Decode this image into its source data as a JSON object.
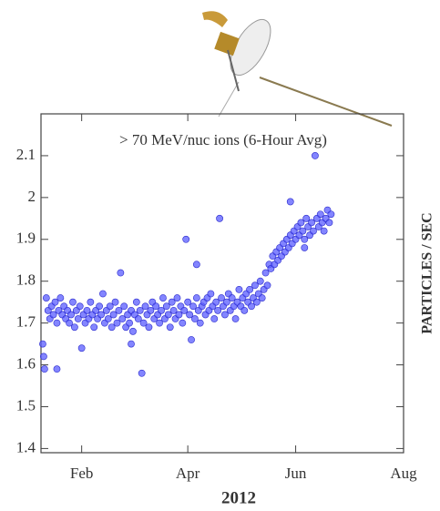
{
  "chart_data": {
    "type": "scatter",
    "annotation": "> 70 MeV/nuc ions (6-Hour Avg)",
    "x_label": "2012",
    "y_label": "PARTICLES / SEC",
    "color": "#5a5cff",
    "xlim": [
      9,
      214
    ],
    "ylim": [
      1.39,
      2.2
    ],
    "xticks": [
      {
        "value": 32,
        "label": "Feb"
      },
      {
        "value": 92,
        "label": "Apr"
      },
      {
        "value": 153,
        "label": "Jun"
      },
      {
        "value": 214,
        "label": "Aug"
      }
    ],
    "yticks": [
      1.4,
      1.5,
      1.6,
      1.7,
      1.8,
      1.9,
      2,
      2.1
    ],
    "x": [
      12,
      13,
      14,
      15,
      16,
      17,
      18,
      19,
      20,
      21,
      22,
      23,
      24,
      25,
      26,
      27,
      28,
      29,
      30,
      31,
      33,
      34,
      35,
      36,
      37,
      38,
      39,
      40,
      41,
      42,
      43,
      44,
      45,
      46,
      47,
      48,
      49,
      50,
      51,
      52,
      53,
      55,
      56,
      57,
      58,
      59,
      60,
      61,
      62,
      63,
      64,
      65,
      67,
      68,
      69,
      70,
      71,
      72,
      73,
      74,
      75,
      76,
      77,
      78,
      79,
      80,
      81,
      82,
      83,
      84,
      85,
      86,
      87,
      88,
      89,
      90,
      92,
      93,
      95,
      96,
      97,
      98,
      99,
      100,
      101,
      102,
      103,
      104,
      105,
      106,
      107,
      108,
      109,
      111,
      112,
      113,
      114,
      115,
      116,
      117,
      118,
      119,
      120,
      121,
      122,
      123,
      124,
      125,
      126,
      127,
      128,
      129,
      130,
      131,
      132,
      133,
      134,
      135,
      136,
      137,
      138,
      139,
      140,
      141,
      142,
      143,
      144,
      145,
      146,
      147,
      148,
      149,
      150,
      151,
      152,
      153,
      154,
      155,
      156,
      157,
      158,
      159,
      160,
      161,
      162,
      163,
      165,
      166,
      167,
      168,
      169,
      170,
      171,
      172,
      173,
      10,
      10.5,
      11,
      18,
      32,
      54,
      60,
      66,
      91,
      94,
      97,
      110,
      150,
      158,
      164
    ],
    "values": [
      1.76,
      1.73,
      1.71,
      1.74,
      1.72,
      1.75,
      1.7,
      1.73,
      1.76,
      1.72,
      1.74,
      1.71,
      1.73,
      1.7,
      1.72,
      1.75,
      1.69,
      1.73,
      1.71,
      1.74,
      1.72,
      1.7,
      1.73,
      1.71,
      1.75,
      1.72,
      1.69,
      1.73,
      1.71,
      1.74,
      1.72,
      1.77,
      1.7,
      1.73,
      1.71,
      1.74,
      1.69,
      1.72,
      1.75,
      1.7,
      1.73,
      1.71,
      1.74,
      1.69,
      1.72,
      1.7,
      1.73,
      1.68,
      1.72,
      1.75,
      1.71,
      1.73,
      1.7,
      1.74,
      1.72,
      1.69,
      1.73,
      1.75,
      1.71,
      1.74,
      1.72,
      1.7,
      1.73,
      1.76,
      1.71,
      1.74,
      1.72,
      1.69,
      1.75,
      1.73,
      1.71,
      1.76,
      1.72,
      1.74,
      1.7,
      1.73,
      1.75,
      1.72,
      1.74,
      1.71,
      1.76,
      1.73,
      1.7,
      1.74,
      1.75,
      1.72,
      1.76,
      1.73,
      1.77,
      1.74,
      1.71,
      1.75,
      1.73,
      1.76,
      1.74,
      1.72,
      1.75,
      1.77,
      1.73,
      1.76,
      1.74,
      1.71,
      1.75,
      1.78,
      1.74,
      1.76,
      1.73,
      1.77,
      1.75,
      1.78,
      1.74,
      1.76,
      1.79,
      1.75,
      1.77,
      1.8,
      1.76,
      1.78,
      1.82,
      1.79,
      1.84,
      1.83,
      1.86,
      1.84,
      1.87,
      1.85,
      1.88,
      1.86,
      1.89,
      1.87,
      1.9,
      1.88,
      1.91,
      1.89,
      1.92,
      1.9,
      1.93,
      1.91,
      1.94,
      1.92,
      1.9,
      1.95,
      1.93,
      1.91,
      1.94,
      1.92,
      1.95,
      1.93,
      1.96,
      1.94,
      1.92,
      1.95,
      1.97,
      1.94,
      1.96,
      1.65,
      1.62,
      1.59,
      1.59,
      1.64,
      1.82,
      1.65,
      1.58,
      1.9,
      1.66,
      1.84,
      1.95,
      1.99,
      1.88,
      2.1
    ]
  }
}
